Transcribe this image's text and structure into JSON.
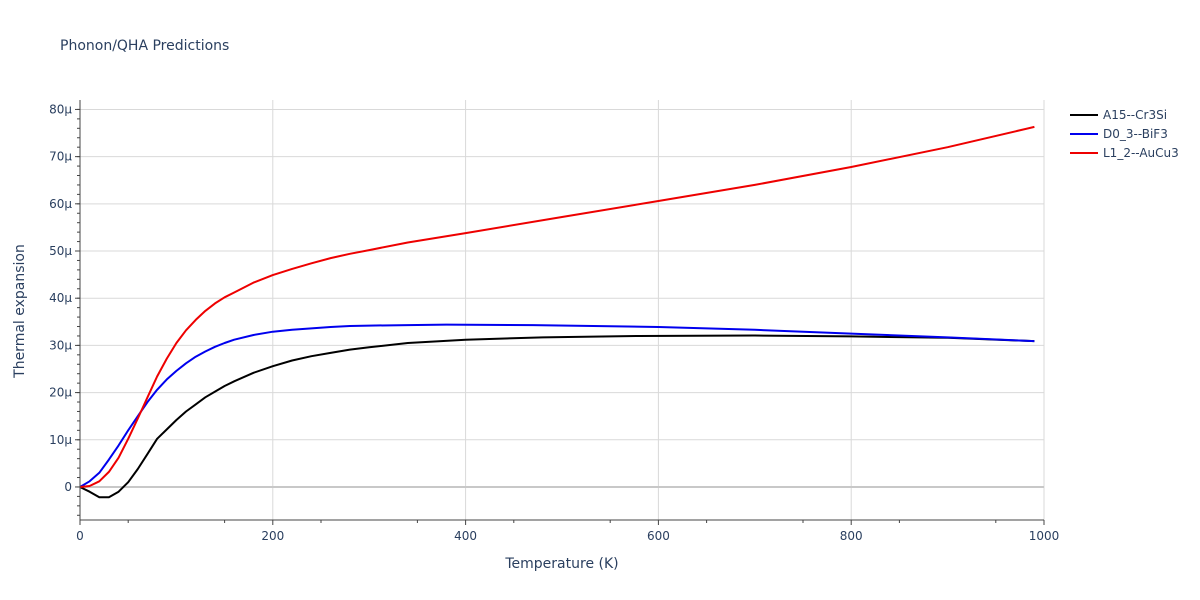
{
  "chart_data": {
    "type": "line",
    "title": "Phonon/QHA Predictions",
    "xlabel": "Temperature (K)",
    "ylabel": "Thermal expansion",
    "xlim": [
      0,
      1000
    ],
    "ylim": [
      -7e-06,
      8.2e-05
    ],
    "x_ticks": [
      0,
      200,
      400,
      600,
      800,
      1000
    ],
    "x_tick_labels": [
      "0",
      "200",
      "400",
      "600",
      "800",
      "1000"
    ],
    "y_ticks": [
      0,
      1e-05,
      2e-05,
      3e-05,
      4e-05,
      5e-05,
      6e-05,
      7e-05,
      8e-05
    ],
    "y_tick_labels": [
      "0",
      "10μ",
      "20μ",
      "30μ",
      "40μ",
      "50μ",
      "60μ",
      "70μ",
      "80μ"
    ],
    "grid": true,
    "legend_position": "top-right",
    "series": [
      {
        "name": "A15--Cr3Si",
        "color": "#000000",
        "x": [
          0,
          10,
          20,
          30,
          40,
          50,
          60,
          70,
          80,
          90,
          100,
          110,
          120,
          130,
          140,
          150,
          160,
          180,
          200,
          220,
          240,
          260,
          280,
          300,
          340,
          400,
          480,
          580,
          700,
          800,
          900,
          990
        ],
        "y": [
          0,
          -1e-06,
          -2.2e-06,
          -2.2e-06,
          -1e-06,
          1e-06,
          3.8e-06,
          7e-06,
          1.02e-05,
          1.22e-05,
          1.42e-05,
          1.6e-05,
          1.75e-05,
          1.9e-05,
          2.02e-05,
          2.14e-05,
          2.24e-05,
          2.42e-05,
          2.56e-05,
          2.68e-05,
          2.77e-05,
          2.84e-05,
          2.91e-05,
          2.96e-05,
          3.05e-05,
          3.12e-05,
          3.17e-05,
          3.2e-05,
          3.21e-05,
          3.19e-05,
          3.16e-05,
          3.09e-05
        ]
      },
      {
        "name": "D0_3--BiF3",
        "color": "#0000ee",
        "x": [
          0,
          10,
          20,
          30,
          40,
          50,
          60,
          70,
          80,
          90,
          100,
          110,
          120,
          130,
          140,
          150,
          160,
          180,
          200,
          220,
          240,
          260,
          280,
          300,
          340,
          380,
          470,
          600,
          700,
          800,
          900,
          990
        ],
        "y": [
          0,
          1.2e-06,
          3e-06,
          5.8e-06,
          8.8e-06,
          1.2e-05,
          1.5e-05,
          1.8e-05,
          2.06e-05,
          2.28e-05,
          2.46e-05,
          2.62e-05,
          2.76e-05,
          2.87e-05,
          2.97e-05,
          3.05e-05,
          3.12e-05,
          3.22e-05,
          3.29e-05,
          3.33e-05,
          3.36e-05,
          3.39e-05,
          3.41e-05,
          3.42e-05,
          3.43e-05,
          3.44e-05,
          3.43e-05,
          3.39e-05,
          3.33e-05,
          3.25e-05,
          3.17e-05,
          3.09e-05
        ]
      },
      {
        "name": "L1_2--AuCu3",
        "color": "#ee0000",
        "x": [
          0,
          10,
          20,
          30,
          40,
          50,
          60,
          70,
          80,
          90,
          100,
          110,
          120,
          130,
          140,
          150,
          160,
          180,
          200,
          220,
          240,
          260,
          280,
          300,
          340,
          400,
          500,
          600,
          700,
          800,
          900,
          990
        ],
        "y": [
          0,
          2e-07,
          1.2e-06,
          3.2e-06,
          6.2e-06,
          1.02e-05,
          1.45e-05,
          1.9e-05,
          2.34e-05,
          2.72e-05,
          3.05e-05,
          3.32e-05,
          3.54e-05,
          3.73e-05,
          3.89e-05,
          4.02e-05,
          4.12e-05,
          4.33e-05,
          4.49e-05,
          4.62e-05,
          4.74e-05,
          4.85e-05,
          4.94e-05,
          5.02e-05,
          5.18e-05,
          5.38e-05,
          5.72e-05,
          6.06e-05,
          6.4e-05,
          6.78e-05,
          7.2e-05,
          7.63e-05
        ]
      }
    ]
  }
}
